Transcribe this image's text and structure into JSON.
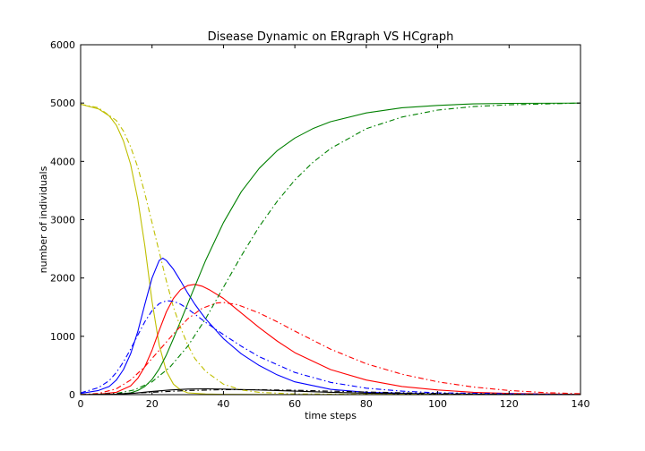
{
  "chart_data": {
    "type": "line",
    "title": "Disease Dynamic on ERgraph VS HCgraph",
    "xlabel": "time steps",
    "ylabel": "number of individuals",
    "xlim": [
      0,
      140
    ],
    "ylim": [
      0,
      6000
    ],
    "xticks": [
      "0",
      "20",
      "40",
      "60",
      "80",
      "100",
      "120",
      "140"
    ],
    "yticks": [
      "0",
      "1000",
      "2000",
      "3000",
      "4000",
      "5000",
      "6000"
    ],
    "grid": false,
    "legend": "none",
    "series": [
      {
        "color": "#bfbf00",
        "style": "solid",
        "x": [
          0,
          5,
          8,
          10,
          12,
          14,
          16,
          18,
          20,
          22,
          24,
          26,
          28,
          30,
          35,
          40,
          60,
          140
        ],
        "y": [
          4980,
          4900,
          4780,
          4620,
          4350,
          3950,
          3350,
          2550,
          1600,
          850,
          400,
          180,
          80,
          30,
          10,
          5,
          2,
          0
        ]
      },
      {
        "color": "#0000ff",
        "style": "solid",
        "x": [
          0,
          5,
          8,
          10,
          12,
          14,
          16,
          18,
          20,
          22,
          23,
          24,
          26,
          28,
          30,
          32,
          35,
          40,
          45,
          50,
          55,
          60,
          70,
          80,
          100,
          140
        ],
        "y": [
          20,
          70,
          140,
          250,
          430,
          700,
          1080,
          1550,
          2000,
          2300,
          2340,
          2300,
          2150,
          1950,
          1740,
          1550,
          1300,
          960,
          700,
          500,
          340,
          220,
          90,
          40,
          10,
          0
        ]
      },
      {
        "color": "#ff0000",
        "style": "solid",
        "x": [
          0,
          5,
          10,
          14,
          16,
          18,
          20,
          22,
          24,
          26,
          28,
          30,
          32,
          34,
          36,
          40,
          45,
          50,
          55,
          60,
          70,
          80,
          90,
          100,
          110,
          120,
          140
        ],
        "y": [
          2,
          8,
          40,
          150,
          280,
          480,
          760,
          1100,
          1420,
          1650,
          1800,
          1870,
          1890,
          1860,
          1800,
          1650,
          1400,
          1150,
          920,
          720,
          430,
          250,
          140,
          80,
          40,
          20,
          5
        ]
      },
      {
        "color": "#008000",
        "style": "solid",
        "x": [
          0,
          10,
          14,
          16,
          18,
          20,
          22,
          24,
          26,
          28,
          30,
          35,
          40,
          45,
          50,
          55,
          60,
          65,
          70,
          80,
          90,
          100,
          110,
          120,
          140
        ],
        "y": [
          0,
          5,
          30,
          70,
          140,
          260,
          440,
          680,
          960,
          1260,
          1560,
          2300,
          2950,
          3480,
          3880,
          4180,
          4400,
          4560,
          4680,
          4830,
          4920,
          4960,
          4985,
          4995,
          5000
        ]
      },
      {
        "color": "#000000",
        "style": "solid",
        "x": [
          0,
          10,
          15,
          20,
          25,
          30,
          35,
          40,
          50,
          60,
          70,
          80,
          100,
          140
        ],
        "y": [
          0,
          8,
          25,
          55,
          80,
          95,
          100,
          95,
          80,
          60,
          40,
          25,
          8,
          0
        ]
      },
      {
        "color": "#bfbf00",
        "style": "dashdot",
        "x": [
          0,
          5,
          10,
          12,
          14,
          16,
          18,
          20,
          22,
          24,
          26,
          28,
          30,
          32,
          35,
          40,
          45,
          50,
          60,
          140
        ],
        "y": [
          4980,
          4920,
          4700,
          4520,
          4250,
          3900,
          3450,
          2950,
          2450,
          1950,
          1500,
          1150,
          850,
          620,
          400,
          180,
          80,
          40,
          10,
          0
        ]
      },
      {
        "color": "#0000ff",
        "style": "dashdot",
        "x": [
          0,
          5,
          8,
          10,
          12,
          14,
          16,
          18,
          20,
          22,
          24,
          26,
          28,
          30,
          32,
          35,
          40,
          45,
          50,
          60,
          70,
          80,
          90,
          100,
          140
        ],
        "y": [
          30,
          120,
          240,
          380,
          560,
          780,
          1020,
          1250,
          1440,
          1560,
          1610,
          1600,
          1550,
          1470,
          1380,
          1240,
          1030,
          830,
          650,
          380,
          210,
          110,
          60,
          30,
          0
        ]
      },
      {
        "color": "#ff0000",
        "style": "dashdot",
        "x": [
          0,
          5,
          10,
          14,
          18,
          22,
          26,
          30,
          34,
          38,
          40,
          44,
          50,
          55,
          60,
          70,
          80,
          90,
          100,
          110,
          120,
          130,
          140
        ],
        "y": [
          2,
          20,
          100,
          250,
          480,
          760,
          1040,
          1300,
          1480,
          1570,
          1580,
          1540,
          1400,
          1250,
          1090,
          780,
          530,
          350,
          220,
          130,
          70,
          35,
          15
        ]
      },
      {
        "color": "#008000",
        "style": "dashdot",
        "x": [
          0,
          10,
          15,
          20,
          25,
          30,
          35,
          40,
          45,
          50,
          55,
          60,
          65,
          70,
          80,
          90,
          100,
          110,
          120,
          140
        ],
        "y": [
          0,
          20,
          80,
          220,
          470,
          830,
          1300,
          1840,
          2380,
          2880,
          3310,
          3680,
          3980,
          4220,
          4560,
          4760,
          4880,
          4940,
          4970,
          5000
        ]
      },
      {
        "color": "#000000",
        "style": "dashdot",
        "x": [
          0,
          10,
          20,
          30,
          40,
          50,
          60,
          70,
          80,
          90,
          100,
          110,
          120,
          140
        ],
        "y": [
          0,
          15,
          40,
          70,
          85,
          85,
          75,
          60,
          45,
          32,
          20,
          12,
          7,
          2
        ]
      }
    ]
  }
}
